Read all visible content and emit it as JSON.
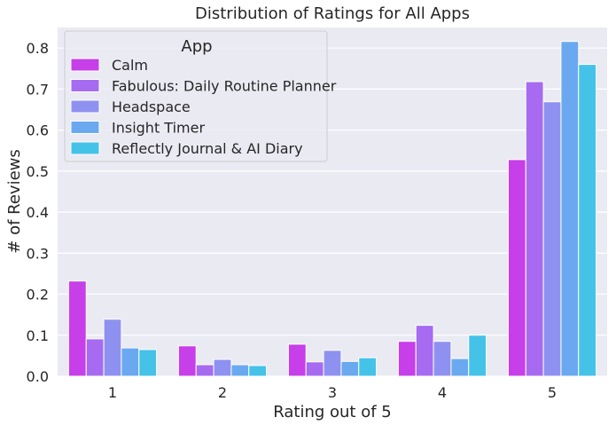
{
  "chart_data": {
    "type": "bar",
    "title": "Distribution of Ratings for All Apps",
    "xlabel": "Rating out of 5",
    "ylabel": "# of Reviews",
    "categories": [
      "1",
      "2",
      "3",
      "4",
      "5"
    ],
    "ylim": [
      0,
      0.85
    ],
    "yticks": [
      "0.0",
      "0.1",
      "0.2",
      "0.3",
      "0.4",
      "0.5",
      "0.6",
      "0.7",
      "0.8"
    ],
    "grid": true,
    "legend": {
      "title": "App",
      "placement": "top-left"
    },
    "series": [
      {
        "name": "Calm",
        "color": "#c63fe8",
        "values": [
          0.232,
          0.074,
          0.078,
          0.085,
          0.528
        ]
      },
      {
        "name": "Fabulous: Daily Routine Planner",
        "color": "#a66bf0",
        "values": [
          0.091,
          0.028,
          0.035,
          0.124,
          0.718
        ]
      },
      {
        "name": "Headspace",
        "color": "#8f91f0",
        "values": [
          0.139,
          0.041,
          0.063,
          0.085,
          0.669
        ]
      },
      {
        "name": "Insight Timer",
        "color": "#6aa9f0",
        "values": [
          0.069,
          0.028,
          0.036,
          0.043,
          0.816
        ]
      },
      {
        "name": "Reflectly Journal & AI Diary",
        "color": "#45c2e8",
        "values": [
          0.065,
          0.026,
          0.045,
          0.1,
          0.76
        ]
      }
    ]
  }
}
